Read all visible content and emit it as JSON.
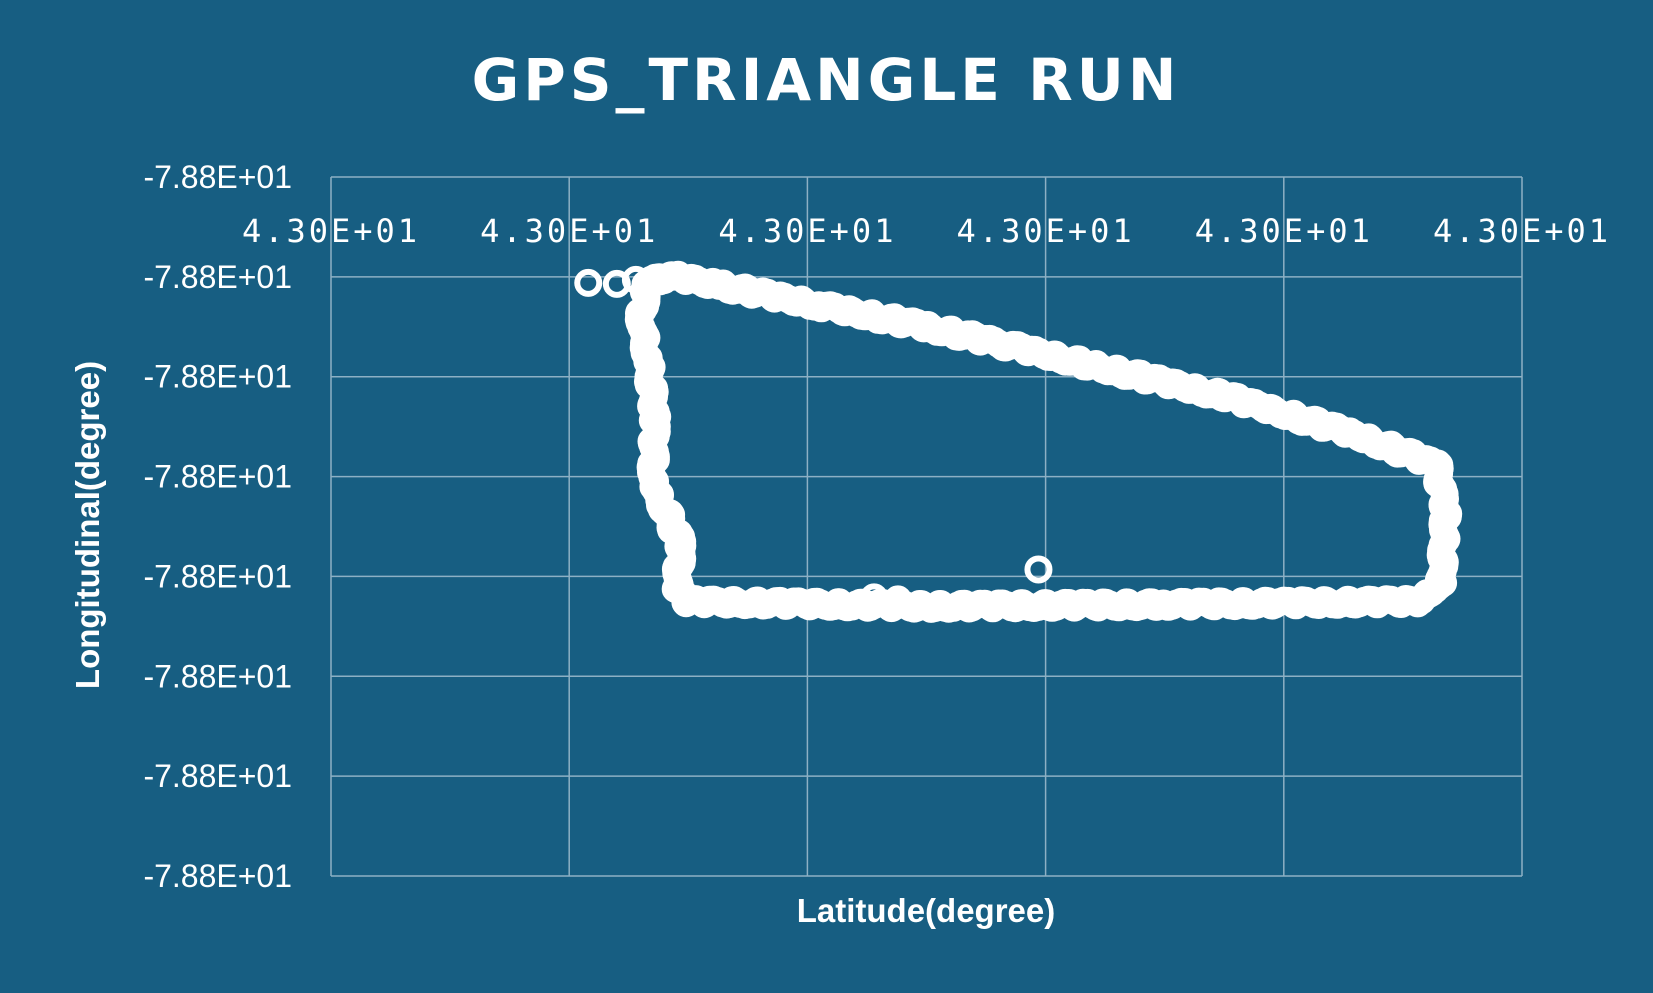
{
  "chart_data": {
    "type": "scatter",
    "title": "GPS_TRIANGLE RUN",
    "xlabel": "Latitude(degree)",
    "ylabel": "Longitudinal(degree)",
    "x_tick_labels": [
      "4.30E+01",
      "4.30E+01",
      "4.30E+01",
      "4.30E+01",
      "4.30E+01",
      "4.30E+01"
    ],
    "y_tick_labels": [
      "-7.88E+01",
      "-7.88E+01",
      "-7.88E+01",
      "-7.88E+01",
      "-7.88E+01",
      "-7.88E+01",
      "-7.88E+01",
      "-7.88E+01"
    ],
    "x_axis": {
      "min": 0,
      "max": 5,
      "position": "top"
    },
    "y_axis": {
      "min": -7,
      "max": 0
    },
    "grid": true,
    "legend": "none",
    "marker": "hollow-circle",
    "colors": {
      "background": "#175e82",
      "marker": "#ffffff",
      "grid": "#8db0c4",
      "text": "#ffffff"
    },
    "path_vertices": [
      {
        "x": 1.38,
        "y": -1.02
      },
      {
        "x": 1.45,
        "y": -1.0
      },
      {
        "x": 1.62,
        "y": -1.08
      },
      {
        "x": 2.04,
        "y": -1.28
      },
      {
        "x": 2.5,
        "y": -1.5
      },
      {
        "x": 2.83,
        "y": -1.68
      },
      {
        "x": 3.22,
        "y": -1.9
      },
      {
        "x": 3.76,
        "y": -2.2
      },
      {
        "x": 4.3,
        "y": -2.58
      },
      {
        "x": 4.64,
        "y": -2.88
      },
      {
        "x": 4.68,
        "y": -3.35
      },
      {
        "x": 4.66,
        "y": -4.09
      },
      {
        "x": 4.56,
        "y": -4.25
      },
      {
        "x": 3.5,
        "y": -4.28
      },
      {
        "x": 2.5,
        "y": -4.3
      },
      {
        "x": 1.5,
        "y": -4.25
      },
      {
        "x": 1.45,
        "y": -4.15
      },
      {
        "x": 1.47,
        "y": -3.67
      },
      {
        "x": 1.35,
        "y": -3.07
      },
      {
        "x": 1.36,
        "y": -2.4
      },
      {
        "x": 1.33,
        "y": -1.8
      },
      {
        "x": 1.3,
        "y": -1.42
      },
      {
        "x": 1.33,
        "y": -1.05
      },
      {
        "x": 1.38,
        "y": -1.02
      }
    ],
    "outliers": [
      {
        "x": 1.08,
        "y": -1.06
      },
      {
        "x": 1.2,
        "y": -1.07
      },
      {
        "x": 1.28,
        "y": -1.03
      },
      {
        "x": 2.28,
        "y": -4.21
      },
      {
        "x": 2.38,
        "y": -4.23
      },
      {
        "x": 2.97,
        "y": -3.93
      }
    ]
  }
}
